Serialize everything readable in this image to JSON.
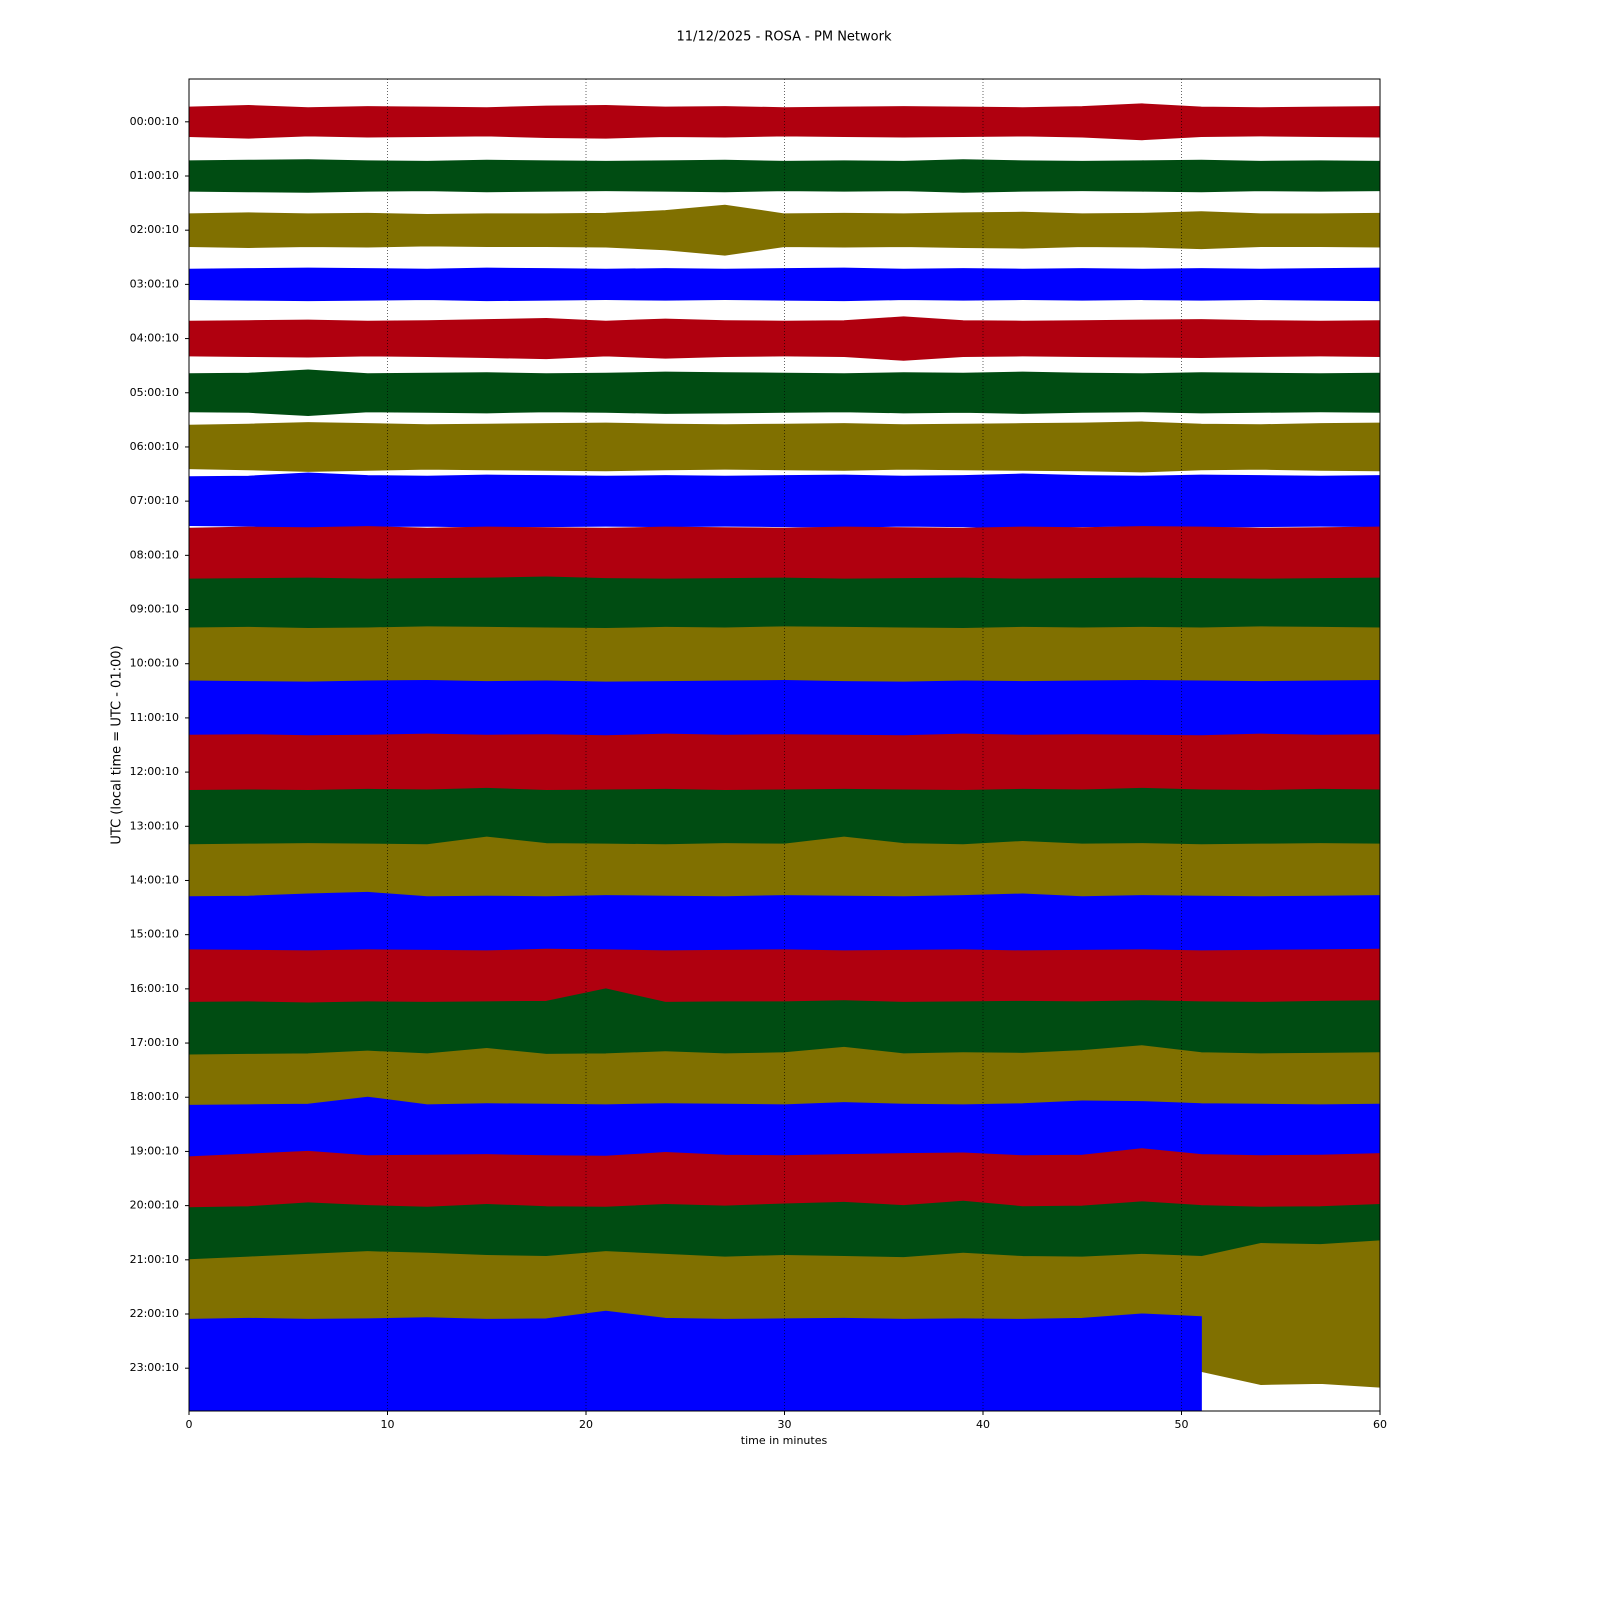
{
  "chart_data": {
    "type": "helicorder",
    "title": "11/12/2025 - ROSA - PM Network",
    "xlabel": "time in minutes",
    "ylabel": "UTC (local time = UTC - 01:00)",
    "xlim": [
      0,
      60
    ],
    "xticks": [
      0,
      10,
      20,
      30,
      40,
      50,
      60
    ],
    "grid": true,
    "ylim": [
      23.79,
      -0.79
    ],
    "yticks": [
      {
        "value": 0,
        "label": "00:00:10"
      },
      {
        "value": 1,
        "label": "01:00:10"
      },
      {
        "value": 2,
        "label": "02:00:10"
      },
      {
        "value": 3,
        "label": "03:00:10"
      },
      {
        "value": 4,
        "label": "04:00:10"
      },
      {
        "value": 5,
        "label": "05:00:10"
      },
      {
        "value": 6,
        "label": "06:00:10"
      },
      {
        "value": 7,
        "label": "07:00:10"
      },
      {
        "value": 8,
        "label": "08:00:10"
      },
      {
        "value": 9,
        "label": "09:00:10"
      },
      {
        "value": 10,
        "label": "10:00:10"
      },
      {
        "value": 11,
        "label": "11:00:10"
      },
      {
        "value": 12,
        "label": "12:00:10"
      },
      {
        "value": 13,
        "label": "13:00:10"
      },
      {
        "value": 14,
        "label": "14:00:10"
      },
      {
        "value": 15,
        "label": "15:00:10"
      },
      {
        "value": 16,
        "label": "16:00:10"
      },
      {
        "value": 17,
        "label": "17:00:10"
      },
      {
        "value": 18,
        "label": "18:00:10"
      },
      {
        "value": 19,
        "label": "19:00:10"
      },
      {
        "value": 20,
        "label": "20:00:10"
      },
      {
        "value": 21,
        "label": "21:00:10"
      },
      {
        "value": 22,
        "label": "22:00:10"
      },
      {
        "value": 23,
        "label": "23:00:10"
      }
    ],
    "x": [
      0,
      3,
      6,
      9,
      12,
      15,
      18,
      21,
      24,
      27,
      30,
      33,
      36,
      39,
      42,
      45,
      48,
      51,
      54,
      57,
      60
    ],
    "series": [
      {
        "color": "#b0000f",
        "values": [
          0.27,
          0.3,
          0.26,
          0.28,
          0.27,
          0.26,
          0.29,
          0.3,
          0.27,
          0.28,
          0.26,
          0.27,
          0.28,
          0.27,
          0.26,
          0.28,
          0.33,
          0.27,
          0.26,
          0.27,
          0.28
        ]
      },
      {
        "color": "#004c12",
        "values": [
          0.28,
          0.29,
          0.3,
          0.28,
          0.27,
          0.29,
          0.28,
          0.27,
          0.28,
          0.29,
          0.27,
          0.28,
          0.27,
          0.3,
          0.28,
          0.27,
          0.28,
          0.29,
          0.27,
          0.28,
          0.27
        ]
      },
      {
        "color": "#807000",
        "values": [
          0.3,
          0.32,
          0.3,
          0.31,
          0.29,
          0.3,
          0.3,
          0.31,
          0.36,
          0.46,
          0.3,
          0.31,
          0.3,
          0.32,
          0.33,
          0.3,
          0.31,
          0.34,
          0.3,
          0.3,
          0.31
        ]
      },
      {
        "color": "#0000ff",
        "values": [
          0.28,
          0.29,
          0.3,
          0.29,
          0.28,
          0.3,
          0.29,
          0.28,
          0.29,
          0.28,
          0.29,
          0.3,
          0.28,
          0.29,
          0.28,
          0.29,
          0.28,
          0.29,
          0.28,
          0.29,
          0.3
        ]
      },
      {
        "color": "#b0000f",
        "values": [
          0.32,
          0.33,
          0.34,
          0.32,
          0.33,
          0.35,
          0.37,
          0.32,
          0.36,
          0.33,
          0.32,
          0.33,
          0.4,
          0.33,
          0.32,
          0.33,
          0.34,
          0.35,
          0.33,
          0.32,
          0.33
        ]
      },
      {
        "color": "#004c12",
        "values": [
          0.35,
          0.36,
          0.42,
          0.35,
          0.36,
          0.37,
          0.35,
          0.36,
          0.38,
          0.37,
          0.36,
          0.35,
          0.37,
          0.36,
          0.38,
          0.36,
          0.35,
          0.37,
          0.36,
          0.35,
          0.36
        ]
      },
      {
        "color": "#807000",
        "values": [
          0.4,
          0.42,
          0.45,
          0.43,
          0.41,
          0.42,
          0.43,
          0.44,
          0.42,
          0.41,
          0.42,
          0.43,
          0.41,
          0.42,
          0.43,
          0.44,
          0.46,
          0.42,
          0.41,
          0.43,
          0.44
        ]
      },
      {
        "color": "#0000ff",
        "values": [
          0.45,
          0.46,
          0.52,
          0.47,
          0.46,
          0.48,
          0.47,
          0.46,
          0.47,
          0.46,
          0.47,
          0.48,
          0.46,
          0.47,
          0.5,
          0.47,
          0.46,
          0.48,
          0.47,
          0.46,
          0.47
        ]
      },
      {
        "color": "#b0000f",
        "values": [
          0.5,
          0.52,
          0.51,
          0.53,
          0.5,
          0.52,
          0.51,
          0.5,
          0.52,
          0.51,
          0.5,
          0.52,
          0.51,
          0.5,
          0.52,
          0.51,
          0.53,
          0.52,
          0.5,
          0.51,
          0.52
        ]
      },
      {
        "color": "#004c12",
        "values": [
          0.56,
          0.57,
          0.58,
          0.56,
          0.57,
          0.58,
          0.6,
          0.57,
          0.56,
          0.57,
          0.58,
          0.56,
          0.57,
          0.58,
          0.56,
          0.57,
          0.58,
          0.57,
          0.56,
          0.57,
          0.58
        ]
      },
      {
        "color": "#807000",
        "values": [
          0.66,
          0.67,
          0.65,
          0.66,
          0.68,
          0.67,
          0.66,
          0.65,
          0.67,
          0.66,
          0.68,
          0.67,
          0.66,
          0.65,
          0.67,
          0.66,
          0.67,
          0.66,
          0.68,
          0.67,
          0.66
        ]
      },
      {
        "color": "#0000ff",
        "values": [
          0.68,
          0.67,
          0.66,
          0.68,
          0.69,
          0.67,
          0.68,
          0.66,
          0.67,
          0.68,
          0.69,
          0.67,
          0.66,
          0.68,
          0.67,
          0.68,
          0.69,
          0.68,
          0.67,
          0.68,
          0.69
        ]
      },
      {
        "color": "#b0000f",
        "values": [
          0.68,
          0.69,
          0.67,
          0.68,
          0.7,
          0.68,
          0.69,
          0.67,
          0.7,
          0.68,
          0.69,
          0.68,
          0.67,
          0.7,
          0.68,
          0.69,
          0.68,
          0.67,
          0.7,
          0.68,
          0.69
        ]
      },
      {
        "color": "#004c12",
        "values": [
          0.66,
          0.67,
          0.66,
          0.68,
          0.67,
          0.7,
          0.66,
          0.67,
          0.68,
          0.66,
          0.67,
          0.68,
          0.67,
          0.66,
          0.68,
          0.67,
          0.7,
          0.67,
          0.66,
          0.68,
          0.67
        ]
      },
      {
        "color": "#807000",
        "values": [
          0.66,
          0.67,
          0.68,
          0.67,
          0.66,
          0.8,
          0.68,
          0.67,
          0.66,
          0.68,
          0.67,
          0.8,
          0.68,
          0.66,
          0.72,
          0.67,
          0.68,
          0.66,
          0.67,
          0.68,
          0.67
        ]
      },
      {
        "color": "#0000ff",
        "values": [
          0.7,
          0.71,
          0.75,
          0.78,
          0.7,
          0.71,
          0.7,
          0.72,
          0.71,
          0.7,
          0.72,
          0.71,
          0.7,
          0.72,
          0.75,
          0.7,
          0.72,
          0.71,
          0.7,
          0.71,
          0.72
        ]
      },
      {
        "color": "#b0000f",
        "values": [
          0.72,
          0.71,
          0.7,
          0.72,
          0.71,
          0.7,
          0.73,
          0.72,
          0.7,
          0.71,
          0.72,
          0.7,
          0.71,
          0.72,
          0.7,
          0.71,
          0.72,
          0.7,
          0.71,
          0.72,
          0.73
        ]
      },
      {
        "color": "#004c12",
        "values": [
          0.75,
          0.76,
          0.74,
          0.76,
          0.75,
          0.76,
          0.77,
          1.0,
          0.75,
          0.76,
          0.76,
          0.78,
          0.75,
          0.76,
          0.77,
          0.76,
          0.78,
          0.76,
          0.75,
          0.77,
          0.78
        ]
      },
      {
        "color": "#807000",
        "values": [
          0.78,
          0.79,
          0.8,
          0.85,
          0.8,
          0.9,
          0.79,
          0.8,
          0.84,
          0.8,
          0.82,
          0.92,
          0.8,
          0.82,
          0.81,
          0.86,
          0.95,
          0.82,
          0.8,
          0.81,
          0.82
        ]
      },
      {
        "color": "#0000ff",
        "values": [
          0.85,
          0.86,
          0.87,
          1.0,
          0.86,
          0.88,
          0.87,
          0.86,
          0.88,
          0.87,
          0.86,
          0.9,
          0.87,
          0.86,
          0.88,
          0.93,
          0.92,
          0.88,
          0.87,
          0.86,
          0.87
        ]
      },
      {
        "color": "#b0000f",
        "values": [
          0.9,
          0.95,
          1.0,
          0.92,
          0.93,
          0.94,
          0.92,
          0.91,
          0.98,
          0.93,
          0.92,
          0.94,
          0.96,
          0.97,
          0.92,
          0.93,
          1.05,
          0.94,
          0.92,
          0.93,
          0.96
        ]
      },
      {
        "color": "#004c12",
        "values": [
          0.96,
          0.98,
          1.05,
          1.0,
          0.97,
          1.02,
          0.98,
          0.97,
          1.02,
          0.99,
          1.03,
          1.06,
          1.0,
          1.08,
          0.98,
          0.99,
          1.07,
          1.0,
          0.97,
          0.98,
          1.02
        ]
      },
      {
        "color": "#807000",
        "values": [
          1.0,
          1.05,
          1.1,
          1.15,
          1.12,
          1.08,
          1.06,
          1.15,
          1.1,
          1.05,
          1.08,
          1.06,
          1.04,
          1.12,
          1.06,
          1.05,
          1.1,
          1.06,
          1.3,
          1.28,
          1.35
        ]
      },
      {
        "color": "#0000ff",
        "values": [
          0.9,
          0.92,
          0.9,
          0.91,
          0.93,
          0.9,
          0.91,
          1.05,
          0.92,
          0.9,
          0.91,
          0.92,
          0.9,
          0.91,
          0.9,
          0.92,
          1.0,
          0.95,
          null,
          null,
          null
        ]
      }
    ]
  }
}
